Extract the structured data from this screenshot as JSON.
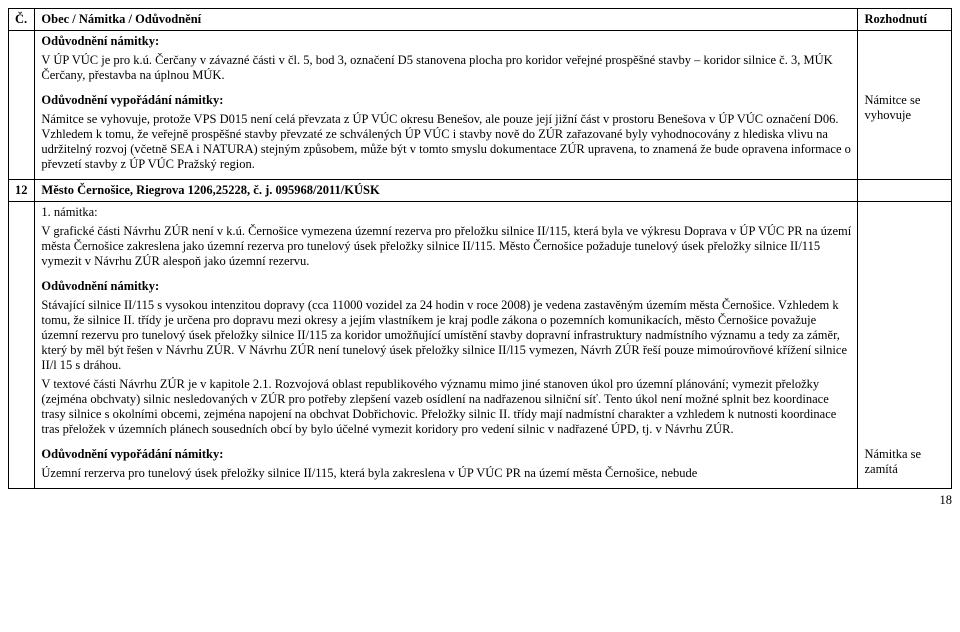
{
  "header": {
    "col1": "Č.",
    "col2": "Obec / Námitka / Odůvodnění",
    "col3": "Rozhodnutí"
  },
  "row1": {
    "oduv_namitky_label": "Odůvodnění námitky:",
    "p1": "V ÚP VÚC je pro k.ú. Čerčany v závazné části v čl. 5, bod 3, označení D5 stanovena plocha pro koridor veřejné prospěšné stavby – koridor silnice č. 3, MÚK Čerčany, přestavba na úplnou MÚK.",
    "oduv_vyp_label": "Odůvodnění vypořádání námitky:",
    "p2": "Námitce se vyhovuje, protože VPS D015 není celá převzata z ÚP VÚC okresu Benešov, ale pouze její jižní část v prostoru Benešova v ÚP VÚC označení D06. Vzhledem k tomu, že veřejně prospěšné stavby převzaté ze schválených ÚP VÚC i stavby nově do ZÚR zařazované byly vyhodnocovány z hlediska vlivu na udržitelný rozvoj (včetně SEA i NATURA) stejným způsobem, může být v tomto smyslu dokumentace ZÚR upravena, to znamená že bude opravena informace o převzetí stavby z ÚP VÚC Pražský region.",
    "decision": "Námitce se vyhovuje"
  },
  "row2": {
    "num": "12",
    "title": "Město Černošice, Riegrova 1206,25228, č. j.  095968/2011/KÚSK"
  },
  "row3": {
    "namitka_label": "1. námitka:",
    "p1": "V grafické části Návrhu ZÚR není v k.ú. Černošice vymezena územní rezerva pro přeložku silnice II/115, která byla ve výkresu Doprava v ÚP VÚC PR na území města Černošice zakreslena jako územní rezerva pro tunelový úsek přeložky silnice II/115. Město Černošice požaduje tunelový úsek přeložky silnice II/115 vymezit v Návrhu ZÚR alespoň jako územní rezervu.",
    "oduv_namitky_label": "Odůvodnění námitky:",
    "p2": "Stávající silnice II/115 s vysokou intenzitou dopravy (cca 11000 vozidel za 24 hodin v roce 2008) je vedena zastavěným územím města Černošice. Vzhledem k tomu, že silnice II. třídy je určena pro dopravu mezi okresy a jejím vlastníkem je kraj podle zákona o pozemních komunikacích, město Černošice považuje územní rezervu pro tunelový úsek přeložky silnice II/115 za koridor umožňující umístění stavby dopravní infrastruktury nadmístního významu a tedy za záměr, který by měl být řešen v Návrhu ZÚR. V Návrhu ZÚR není tunelový úsek přeložky silnice II/l15 vymezen, Návrh ZÚR řeší pouze mimoúrovňové křížení silnice II/l 15 s dráhou.",
    "p3": "V textové části Návrhu ZÚR je v kapitole 2.1. Rozvojová oblast republikového významu mimo jiné stanoven úkol pro územní plánování; vymezit přeložky (zejména obchvaty) silnic nesledovaných v ZÚR pro potřeby zlepšení vazeb osídlení na nadřazenou silniční síť. Tento úkol není možné splnit bez koordinace trasy silnice s okolními obcemi, zejména napojení na obchvat Dobřichovic. Přeložky silnic II. třídy mají nadmístní charakter a vzhledem k nutnosti koordinace tras přeložek v územních plánech sousedních obcí by bylo účelné vymezit koridory pro vedení silnic v nadřazené ÚPD, tj. v Návrhu ZÚR.",
    "oduv_vyp_label": "Odůvodnění vypořádání námitky:",
    "p4": "Územní rerzerva pro tunelový úsek přeložky silnice II/115, která byla zakreslena v ÚP VÚC PR na území města Černošice, nebude",
    "decision": "Námitka se zamítá"
  },
  "pagenum": "18"
}
